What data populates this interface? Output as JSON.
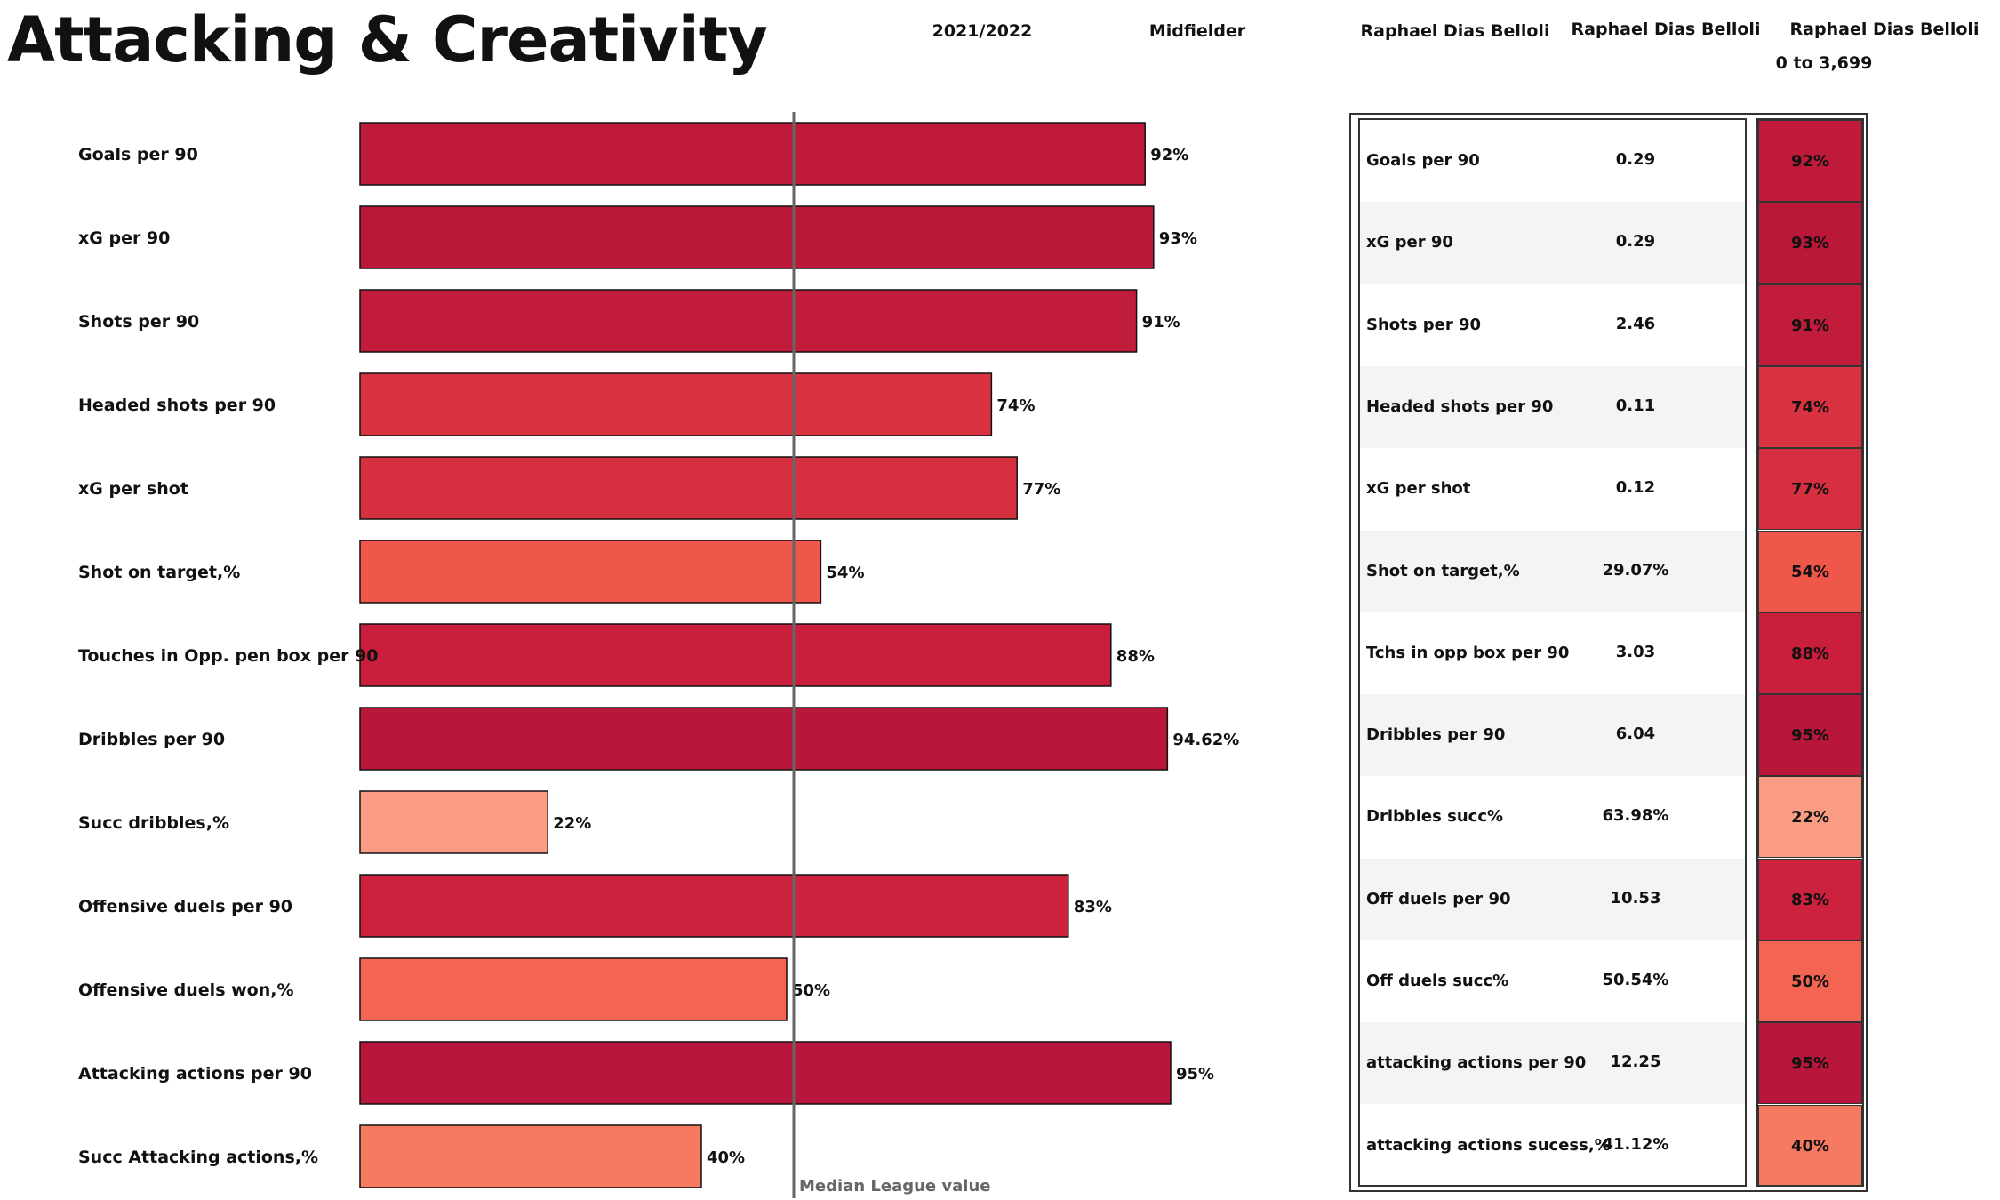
{
  "page": {
    "title": "Attacking & Creativity",
    "headers": {
      "season": "2021/2022",
      "position": "Midfielder",
      "player_1": "Raphael Dias Belloli",
      "player_2": "Raphael Dias Belloli",
      "player_3": "Raphael Dias Belloli",
      "minutes_range": "0 to 3,699"
    }
  },
  "colors": {
    "bar_stroke": "#111111",
    "median_line": "#666666",
    "median_label": "#666666"
  },
  "chart_data": {
    "type": "bar",
    "orientation": "horizontal",
    "categories": [
      "Goals per 90",
      "xG per 90",
      "Shots per 90",
      "Headed shots per 90",
      "xG per shot",
      "Shot on target,%",
      "Touches in Opp. pen box per 90",
      "Dribbles per 90",
      "Succ dribbles,%",
      "Offensive duels per 90",
      "Offensive duels won,%",
      "Attacking actions per 90",
      "Succ Attacking actions,%"
    ],
    "values": [
      92,
      93,
      91,
      74,
      77,
      54,
      88,
      94.62,
      22,
      83,
      50,
      95,
      40
    ],
    "value_labels": [
      "92%",
      "93%",
      "91%",
      "74%",
      "77%",
      "54%",
      "88%",
      "94.62%",
      "22%",
      "83%",
      "50%",
      "95%",
      "40%"
    ],
    "colors": [
      "#bf1a3a",
      "#bb1839",
      "#c11c3b",
      "#d93240",
      "#d62f40",
      "#f0574b",
      "#c91f3c",
      "#b8173a",
      "#fa9c84",
      "#cc223d",
      "#f36552",
      "#b8163a",
      "#f57a60"
    ],
    "xlim": [
      0,
      100
    ],
    "median_value": 50,
    "median_label": "Median League value",
    "grid": false
  },
  "table": {
    "rows": [
      {
        "label": "Goals per 90",
        "value": "0.29",
        "pct": "92%",
        "color": "#bf1a3a"
      },
      {
        "label": "xG per 90",
        "value": "0.29",
        "pct": "93%",
        "color": "#bb1839"
      },
      {
        "label": "Shots per 90",
        "value": "2.46",
        "pct": "91%",
        "color": "#c11c3b"
      },
      {
        "label": "Headed shots per 90",
        "value": "0.11",
        "pct": "74%",
        "color": "#d93240"
      },
      {
        "label": "xG per shot",
        "value": "0.12",
        "pct": "77%",
        "color": "#d62f40"
      },
      {
        "label": "Shot on target,%",
        "value": "29.07%",
        "pct": "54%",
        "color": "#f0574b"
      },
      {
        "label": "Tchs in opp box per 90",
        "value": "3.03",
        "pct": "88%",
        "color": "#c91f3c"
      },
      {
        "label": "Dribbles per 90",
        "value": "6.04",
        "pct": "95%",
        "color": "#b8173a"
      },
      {
        "label": "Dribbles succ%",
        "value": "63.98%",
        "pct": "22%",
        "color": "#fa9c84"
      },
      {
        "label": "Off duels per 90",
        "value": "10.53",
        "pct": "83%",
        "color": "#cc223d"
      },
      {
        "label": "Off duels succ%",
        "value": "50.54%",
        "pct": "50%",
        "color": "#f36552"
      },
      {
        "label": "attacking actions per 90",
        "value": "12.25",
        "pct": "95%",
        "color": "#b8163a"
      },
      {
        "label": "attacking actions sucess,%",
        "value": "41.12%",
        "pct": "40%",
        "color": "#f57a60"
      }
    ]
  }
}
